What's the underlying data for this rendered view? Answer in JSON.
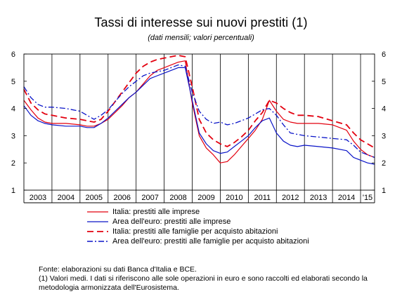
{
  "title": "Tassi di interesse sui nuovi prestiti (1)",
  "subtitle": "(dati mensili; valori percentuali)",
  "notes": {
    "source": "Fonte: elaborazioni su dati Banca d'Italia e BCE.",
    "footnote": "(1) Valori medi. I dati si riferiscono alle sole operazioni in euro e sono raccolti ed elaborati secondo la metodologia armonizzata dell'Eurosistema."
  },
  "colors": {
    "italia": "#e3000f",
    "euro": "#0a14c8",
    "grid": "#000000"
  },
  "chart_data": {
    "type": "line",
    "ylim": [
      1,
      6
    ],
    "yticks": [
      "1",
      "2",
      "3",
      "4",
      "5",
      "6"
    ],
    "x_categories": [
      "2003",
      "2004",
      "2005",
      "2006",
      "2007",
      "2008",
      "2009",
      "2010",
      "2011",
      "2012",
      "2013",
      "2014",
      "'15"
    ],
    "x_range": [
      2003.0,
      2015.5
    ],
    "grid": "vertical lines at year boundaries",
    "legend_position": "bottom",
    "series": [
      {
        "name": "Italia: prestiti alle imprese",
        "color": "#e3000f",
        "dash": "solid",
        "points": [
          [
            2003.0,
            4.3
          ],
          [
            2003.25,
            3.95
          ],
          [
            2003.5,
            3.65
          ],
          [
            2003.75,
            3.5
          ],
          [
            2004.0,
            3.45
          ],
          [
            2004.5,
            3.45
          ],
          [
            2005.0,
            3.4
          ],
          [
            2005.25,
            3.35
          ],
          [
            2005.5,
            3.35
          ],
          [
            2005.75,
            3.45
          ],
          [
            2006.0,
            3.6
          ],
          [
            2006.25,
            3.85
          ],
          [
            2006.5,
            4.1
          ],
          [
            2006.75,
            4.4
          ],
          [
            2007.0,
            4.6
          ],
          [
            2007.25,
            4.9
          ],
          [
            2007.5,
            5.2
          ],
          [
            2007.75,
            5.4
          ],
          [
            2008.0,
            5.5
          ],
          [
            2008.5,
            5.7
          ],
          [
            2008.75,
            5.75
          ],
          [
            2009.0,
            4.2
          ],
          [
            2009.25,
            3.0
          ],
          [
            2009.5,
            2.55
          ],
          [
            2009.75,
            2.3
          ],
          [
            2010.0,
            2.0
          ],
          [
            2010.25,
            2.05
          ],
          [
            2010.5,
            2.3
          ],
          [
            2010.75,
            2.6
          ],
          [
            2011.0,
            2.9
          ],
          [
            2011.25,
            3.2
          ],
          [
            2011.5,
            3.6
          ],
          [
            2011.75,
            4.3
          ],
          [
            2012.0,
            3.9
          ],
          [
            2012.25,
            3.6
          ],
          [
            2012.5,
            3.5
          ],
          [
            2012.75,
            3.45
          ],
          [
            2013.0,
            3.45
          ],
          [
            2013.5,
            3.45
          ],
          [
            2014.0,
            3.4
          ],
          [
            2014.5,
            3.2
          ],
          [
            2014.75,
            2.8
          ],
          [
            2015.0,
            2.5
          ],
          [
            2015.25,
            2.3
          ],
          [
            2015.5,
            2.2
          ]
        ]
      },
      {
        "name": "Area dell'euro: prestiti alle imprese",
        "color": "#0a14c8",
        "dash": "solid",
        "points": [
          [
            2003.0,
            4.1
          ],
          [
            2003.25,
            3.75
          ],
          [
            2003.5,
            3.55
          ],
          [
            2003.75,
            3.45
          ],
          [
            2004.0,
            3.4
          ],
          [
            2004.5,
            3.35
          ],
          [
            2005.0,
            3.35
          ],
          [
            2005.25,
            3.3
          ],
          [
            2005.5,
            3.3
          ],
          [
            2005.75,
            3.45
          ],
          [
            2006.0,
            3.65
          ],
          [
            2006.25,
            3.9
          ],
          [
            2006.5,
            4.15
          ],
          [
            2006.75,
            4.4
          ],
          [
            2007.0,
            4.6
          ],
          [
            2007.25,
            4.85
          ],
          [
            2007.5,
            5.1
          ],
          [
            2007.75,
            5.2
          ],
          [
            2008.0,
            5.3
          ],
          [
            2008.5,
            5.5
          ],
          [
            2008.75,
            5.5
          ],
          [
            2009.0,
            4.3
          ],
          [
            2009.25,
            3.1
          ],
          [
            2009.5,
            2.7
          ],
          [
            2009.75,
            2.45
          ],
          [
            2010.0,
            2.35
          ],
          [
            2010.25,
            2.4
          ],
          [
            2010.5,
            2.6
          ],
          [
            2010.75,
            2.8
          ],
          [
            2011.0,
            3.0
          ],
          [
            2011.25,
            3.3
          ],
          [
            2011.5,
            3.55
          ],
          [
            2011.75,
            3.65
          ],
          [
            2012.0,
            3.1
          ],
          [
            2012.25,
            2.8
          ],
          [
            2012.5,
            2.65
          ],
          [
            2012.75,
            2.6
          ],
          [
            2013.0,
            2.65
          ],
          [
            2013.5,
            2.6
          ],
          [
            2014.0,
            2.55
          ],
          [
            2014.5,
            2.45
          ],
          [
            2014.75,
            2.2
          ],
          [
            2015.0,
            2.1
          ],
          [
            2015.25,
            2.0
          ],
          [
            2015.5,
            1.95
          ]
        ]
      },
      {
        "name": "Italia: prestiti alle famiglie per acquisto abitazioni",
        "color": "#e3000f",
        "dash": "long-dash",
        "points": [
          [
            2003.0,
            4.7
          ],
          [
            2003.25,
            4.2
          ],
          [
            2003.5,
            3.95
          ],
          [
            2003.75,
            3.8
          ],
          [
            2004.0,
            3.75
          ],
          [
            2004.5,
            3.65
          ],
          [
            2005.0,
            3.6
          ],
          [
            2005.25,
            3.55
          ],
          [
            2005.5,
            3.5
          ],
          [
            2005.75,
            3.6
          ],
          [
            2006.0,
            3.9
          ],
          [
            2006.25,
            4.25
          ],
          [
            2006.5,
            4.6
          ],
          [
            2006.75,
            4.95
          ],
          [
            2007.0,
            5.3
          ],
          [
            2007.25,
            5.55
          ],
          [
            2007.5,
            5.7
          ],
          [
            2007.75,
            5.8
          ],
          [
            2008.0,
            5.85
          ],
          [
            2008.5,
            5.95
          ],
          [
            2008.75,
            5.9
          ],
          [
            2009.0,
            4.8
          ],
          [
            2009.25,
            3.6
          ],
          [
            2009.5,
            3.1
          ],
          [
            2009.75,
            2.85
          ],
          [
            2010.0,
            2.7
          ],
          [
            2010.25,
            2.6
          ],
          [
            2010.5,
            2.75
          ],
          [
            2010.75,
            2.95
          ],
          [
            2011.0,
            3.2
          ],
          [
            2011.25,
            3.55
          ],
          [
            2011.5,
            3.85
          ],
          [
            2011.75,
            4.3
          ],
          [
            2012.0,
            4.2
          ],
          [
            2012.25,
            4.0
          ],
          [
            2012.5,
            3.85
          ],
          [
            2012.75,
            3.75
          ],
          [
            2013.0,
            3.75
          ],
          [
            2013.5,
            3.7
          ],
          [
            2014.0,
            3.55
          ],
          [
            2014.5,
            3.4
          ],
          [
            2014.75,
            3.1
          ],
          [
            2015.0,
            2.85
          ],
          [
            2015.25,
            2.7
          ],
          [
            2015.5,
            2.55
          ]
        ]
      },
      {
        "name": "Area dell'euro: prestiti alle famiglie per acquisto abitazioni",
        "color": "#0a14c8",
        "dash": "dash-dot",
        "points": [
          [
            2003.0,
            4.8
          ],
          [
            2003.25,
            4.4
          ],
          [
            2003.5,
            4.15
          ],
          [
            2003.75,
            4.05
          ],
          [
            2004.0,
            4.05
          ],
          [
            2004.5,
            4.0
          ],
          [
            2005.0,
            3.9
          ],
          [
            2005.25,
            3.75
          ],
          [
            2005.5,
            3.6
          ],
          [
            2005.75,
            3.75
          ],
          [
            2006.0,
            3.95
          ],
          [
            2006.25,
            4.25
          ],
          [
            2006.5,
            4.55
          ],
          [
            2006.75,
            4.8
          ],
          [
            2007.0,
            5.0
          ],
          [
            2007.25,
            5.2
          ],
          [
            2007.5,
            5.3
          ],
          [
            2007.75,
            5.35
          ],
          [
            2008.0,
            5.4
          ],
          [
            2008.5,
            5.6
          ],
          [
            2008.75,
            5.55
          ],
          [
            2009.0,
            4.6
          ],
          [
            2009.25,
            3.9
          ],
          [
            2009.5,
            3.6
          ],
          [
            2009.75,
            3.45
          ],
          [
            2010.0,
            3.5
          ],
          [
            2010.25,
            3.4
          ],
          [
            2010.5,
            3.45
          ],
          [
            2010.75,
            3.55
          ],
          [
            2011.0,
            3.65
          ],
          [
            2011.25,
            3.8
          ],
          [
            2011.5,
            3.95
          ],
          [
            2011.75,
            4.0
          ],
          [
            2012.0,
            3.75
          ],
          [
            2012.25,
            3.4
          ],
          [
            2012.5,
            3.1
          ],
          [
            2012.75,
            3.05
          ],
          [
            2013.0,
            3.0
          ],
          [
            2013.5,
            2.95
          ],
          [
            2014.0,
            2.9
          ],
          [
            2014.5,
            2.85
          ],
          [
            2014.75,
            2.65
          ],
          [
            2015.0,
            2.4
          ],
          [
            2015.25,
            2.3
          ],
          [
            2015.5,
            2.2
          ]
        ]
      }
    ]
  }
}
